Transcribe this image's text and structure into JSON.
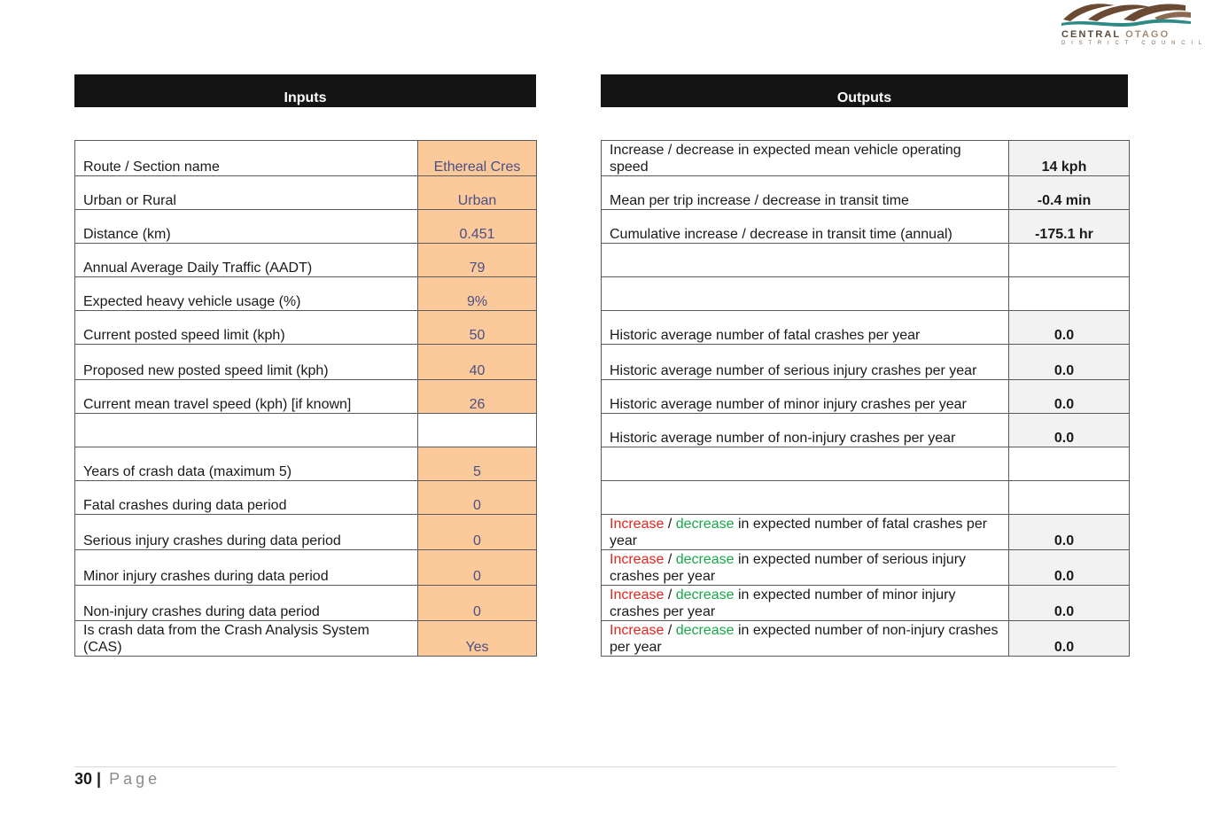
{
  "logo": {
    "name_part1": "CENTRAL",
    "name_part2": "OTAGO",
    "subtitle": "DISTRICT COUNCIL",
    "colors": {
      "brown": "#6b4a33",
      "teal": "#2e8a86",
      "tan": "#a48a74"
    }
  },
  "headers": {
    "inputs": "Inputs",
    "outputs": "Outputs"
  },
  "rows": [
    {
      "input_label": "Route / Section name",
      "input_value": "Ethereal Cres",
      "output_label": "Increase / decrease in expected mean vehicle operating speed",
      "output_value": "14 kph"
    },
    {
      "input_label": "Urban or Rural",
      "input_value": "Urban",
      "output_label": "Mean per trip increase / decrease in transit time",
      "output_value": "-0.4 min"
    },
    {
      "input_label": "Distance (km)",
      "input_value": "0.451",
      "output_label": "Cumulative increase / decrease in transit time (annual)",
      "output_value": "-175.1 hr"
    },
    {
      "input_label": "Annual Average Daily Traffic (AADT)",
      "input_value": "79",
      "output_label": "",
      "output_value": ""
    },
    {
      "input_label": "Expected heavy vehicle usage (%)",
      "input_value": "9%",
      "output_label": "",
      "output_value": ""
    },
    {
      "input_label": "Current posted speed limit (kph)",
      "input_value": "50",
      "output_label": "Historic average number of fatal crashes per year",
      "output_value": "0.0"
    },
    {
      "input_label": "Proposed new posted speed limit (kph)",
      "input_value": "40",
      "output_label": "Historic average number of serious injury crashes per year",
      "output_value": "0.0"
    },
    {
      "input_label": "Current mean travel speed (kph) [if known]",
      "input_value": "26",
      "output_label": "Historic average number of minor injury crashes per year",
      "output_value": "0.0"
    },
    {
      "input_label": "",
      "input_value": "",
      "output_label": "Historic average number of non-injury crashes per year",
      "output_value": "0.0"
    },
    {
      "input_label": "Years of crash data (maximum 5)",
      "input_value": "5",
      "output_label": "",
      "output_value": ""
    },
    {
      "input_label": "Fatal crashes during data period",
      "input_value": "0",
      "output_label": "",
      "output_value": ""
    },
    {
      "input_label": "Serious injury crashes during data period",
      "input_value": "0",
      "output_label_increase": "Increase",
      "output_label_sep": " / ",
      "output_label_decrease": "decrease",
      "output_label_rest": " in expected number of fatal crashes per year",
      "output_value": "0.0"
    },
    {
      "input_label": "Minor injury crashes during data period",
      "input_value": "0",
      "output_label_increase": "Increase",
      "output_label_sep": " / ",
      "output_label_decrease": "decrease",
      "output_label_rest": " in expected number of serious injury crashes per year",
      "output_value": "0.0"
    },
    {
      "input_label": "Non-injury crashes during data period",
      "input_value": "0",
      "output_label_increase": "Increase",
      "output_label_sep": " / ",
      "output_label_decrease": "decrease",
      "output_label_rest": " in expected number of minor injury crashes per year",
      "output_value": "0.0"
    },
    {
      "input_label": "Is crash data from the Crash Analysis System (CAS)",
      "input_value": "Yes",
      "output_label_increase": "Increase",
      "output_label_sep": " / ",
      "output_label_decrease": "decrease",
      "output_label_rest": " in expected number of non-injury crashes per year",
      "output_value": "0.0"
    }
  ],
  "footer": {
    "page_number": "30",
    "separator": "|",
    "page_label": "Page"
  }
}
